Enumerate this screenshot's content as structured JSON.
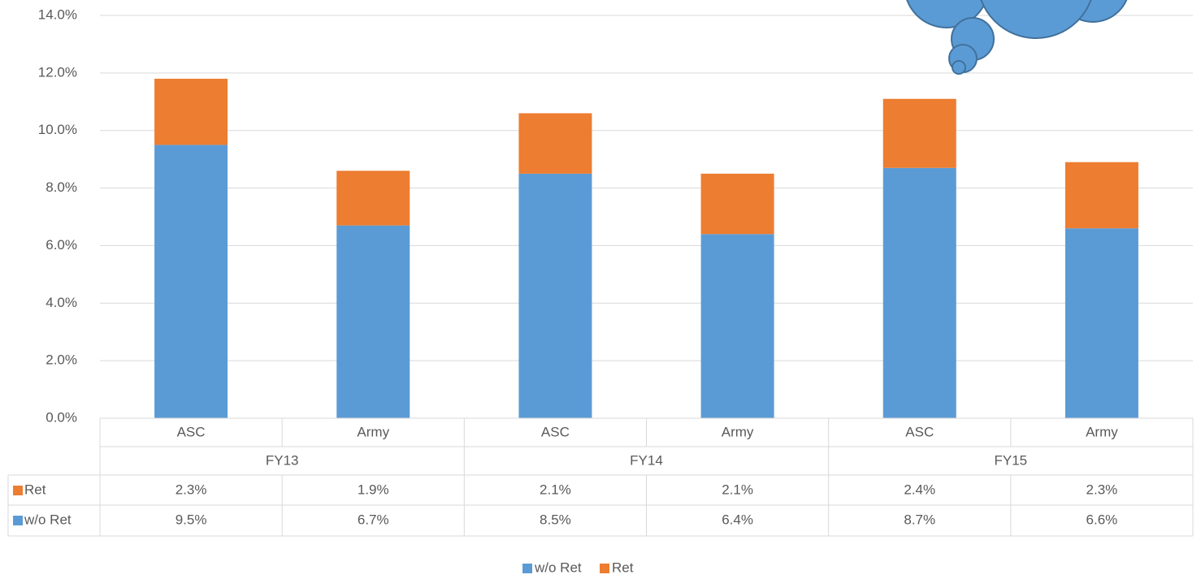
{
  "chart_data": {
    "type": "stacked_bar",
    "categories": [
      "ASC",
      "Army",
      "ASC",
      "Army",
      "ASC",
      "Army"
    ],
    "groups": [
      "FY13",
      "FY14",
      "FY15"
    ],
    "series": [
      {
        "name": "w/o Ret",
        "color": "#5b9bd5",
        "values": [
          9.5,
          6.7,
          8.5,
          6.4,
          8.7,
          6.6
        ],
        "value_labels": [
          "9.5%",
          "6.7%",
          "8.5%",
          "6.4%",
          "8.7%",
          "6.6%"
        ]
      },
      {
        "name": "Ret",
        "color": "#ed7d31",
        "values": [
          2.3,
          1.9,
          2.1,
          2.1,
          2.4,
          2.3
        ],
        "value_labels": [
          "2.3%",
          "1.9%",
          "2.1%",
          "2.1%",
          "2.4%",
          "2.3%"
        ]
      }
    ],
    "ylim": [
      0,
      14
    ],
    "yticks": [
      {
        "value": 0,
        "label": "0.0%"
      },
      {
        "value": 2,
        "label": "2.0%"
      },
      {
        "value": 4,
        "label": "4.0%"
      },
      {
        "value": 6,
        "label": "6.0%"
      },
      {
        "value": 8,
        "label": "8.0%"
      },
      {
        "value": 10,
        "label": "10.0%"
      },
      {
        "value": 12,
        "label": "12.0%"
      },
      {
        "value": 14,
        "label": "14.0%"
      }
    ],
    "grid": true,
    "legend": "bottom",
    "data_table": true
  }
}
